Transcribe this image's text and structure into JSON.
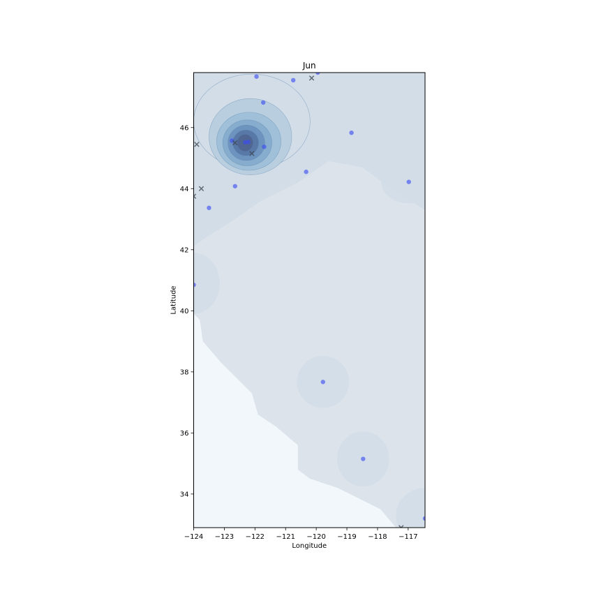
{
  "chart_data": {
    "type": "scatter",
    "title": "Jun",
    "xlabel": "Longitude",
    "ylabel": "Latitude",
    "xlim": [
      -124.0,
      -116.45
    ],
    "ylim": [
      32.9,
      47.8
    ],
    "xticks": [
      -124,
      -123,
      -122,
      -121,
      -120,
      -119,
      -118,
      -117
    ],
    "yticks": [
      34,
      36,
      38,
      40,
      42,
      44,
      46
    ],
    "grid": false,
    "colors": {
      "points": "#3a4cf0",
      "crosses": "#3c4650",
      "kde_outer": "#dce3ea",
      "kde_levels": [
        "#d2dde8",
        "#b9cfe0",
        "#9fc0d8",
        "#86acce",
        "#6d93bf",
        "#5879a8",
        "#4f6592"
      ],
      "water": "#f2f7fb"
    },
    "series": [
      {
        "marker": "circle",
        "points": [
          [
            -121.95,
            47.67
          ],
          [
            -120.75,
            47.55
          ],
          [
            -119.95,
            47.8
          ],
          [
            -121.73,
            46.82
          ],
          [
            -118.85,
            45.83
          ],
          [
            -122.75,
            45.57
          ],
          [
            -122.32,
            45.52
          ],
          [
            -122.22,
            45.53
          ],
          [
            -121.7,
            45.37
          ],
          [
            -120.33,
            44.55
          ],
          [
            -122.65,
            44.08
          ],
          [
            -116.98,
            44.22
          ],
          [
            -123.5,
            43.37
          ],
          [
            -124.0,
            40.85
          ],
          [
            -119.78,
            37.67
          ],
          [
            -118.47,
            35.15
          ],
          [
            -116.45,
            33.2
          ]
        ]
      },
      {
        "marker": "x",
        "points": [
          [
            -120.15,
            47.62
          ],
          [
            -123.9,
            45.45
          ],
          [
            -122.65,
            45.5
          ],
          [
            -122.1,
            45.15
          ],
          [
            -123.75,
            44.0
          ],
          [
            -124.0,
            43.75
          ],
          [
            -117.23,
            32.9
          ]
        ]
      }
    ]
  }
}
